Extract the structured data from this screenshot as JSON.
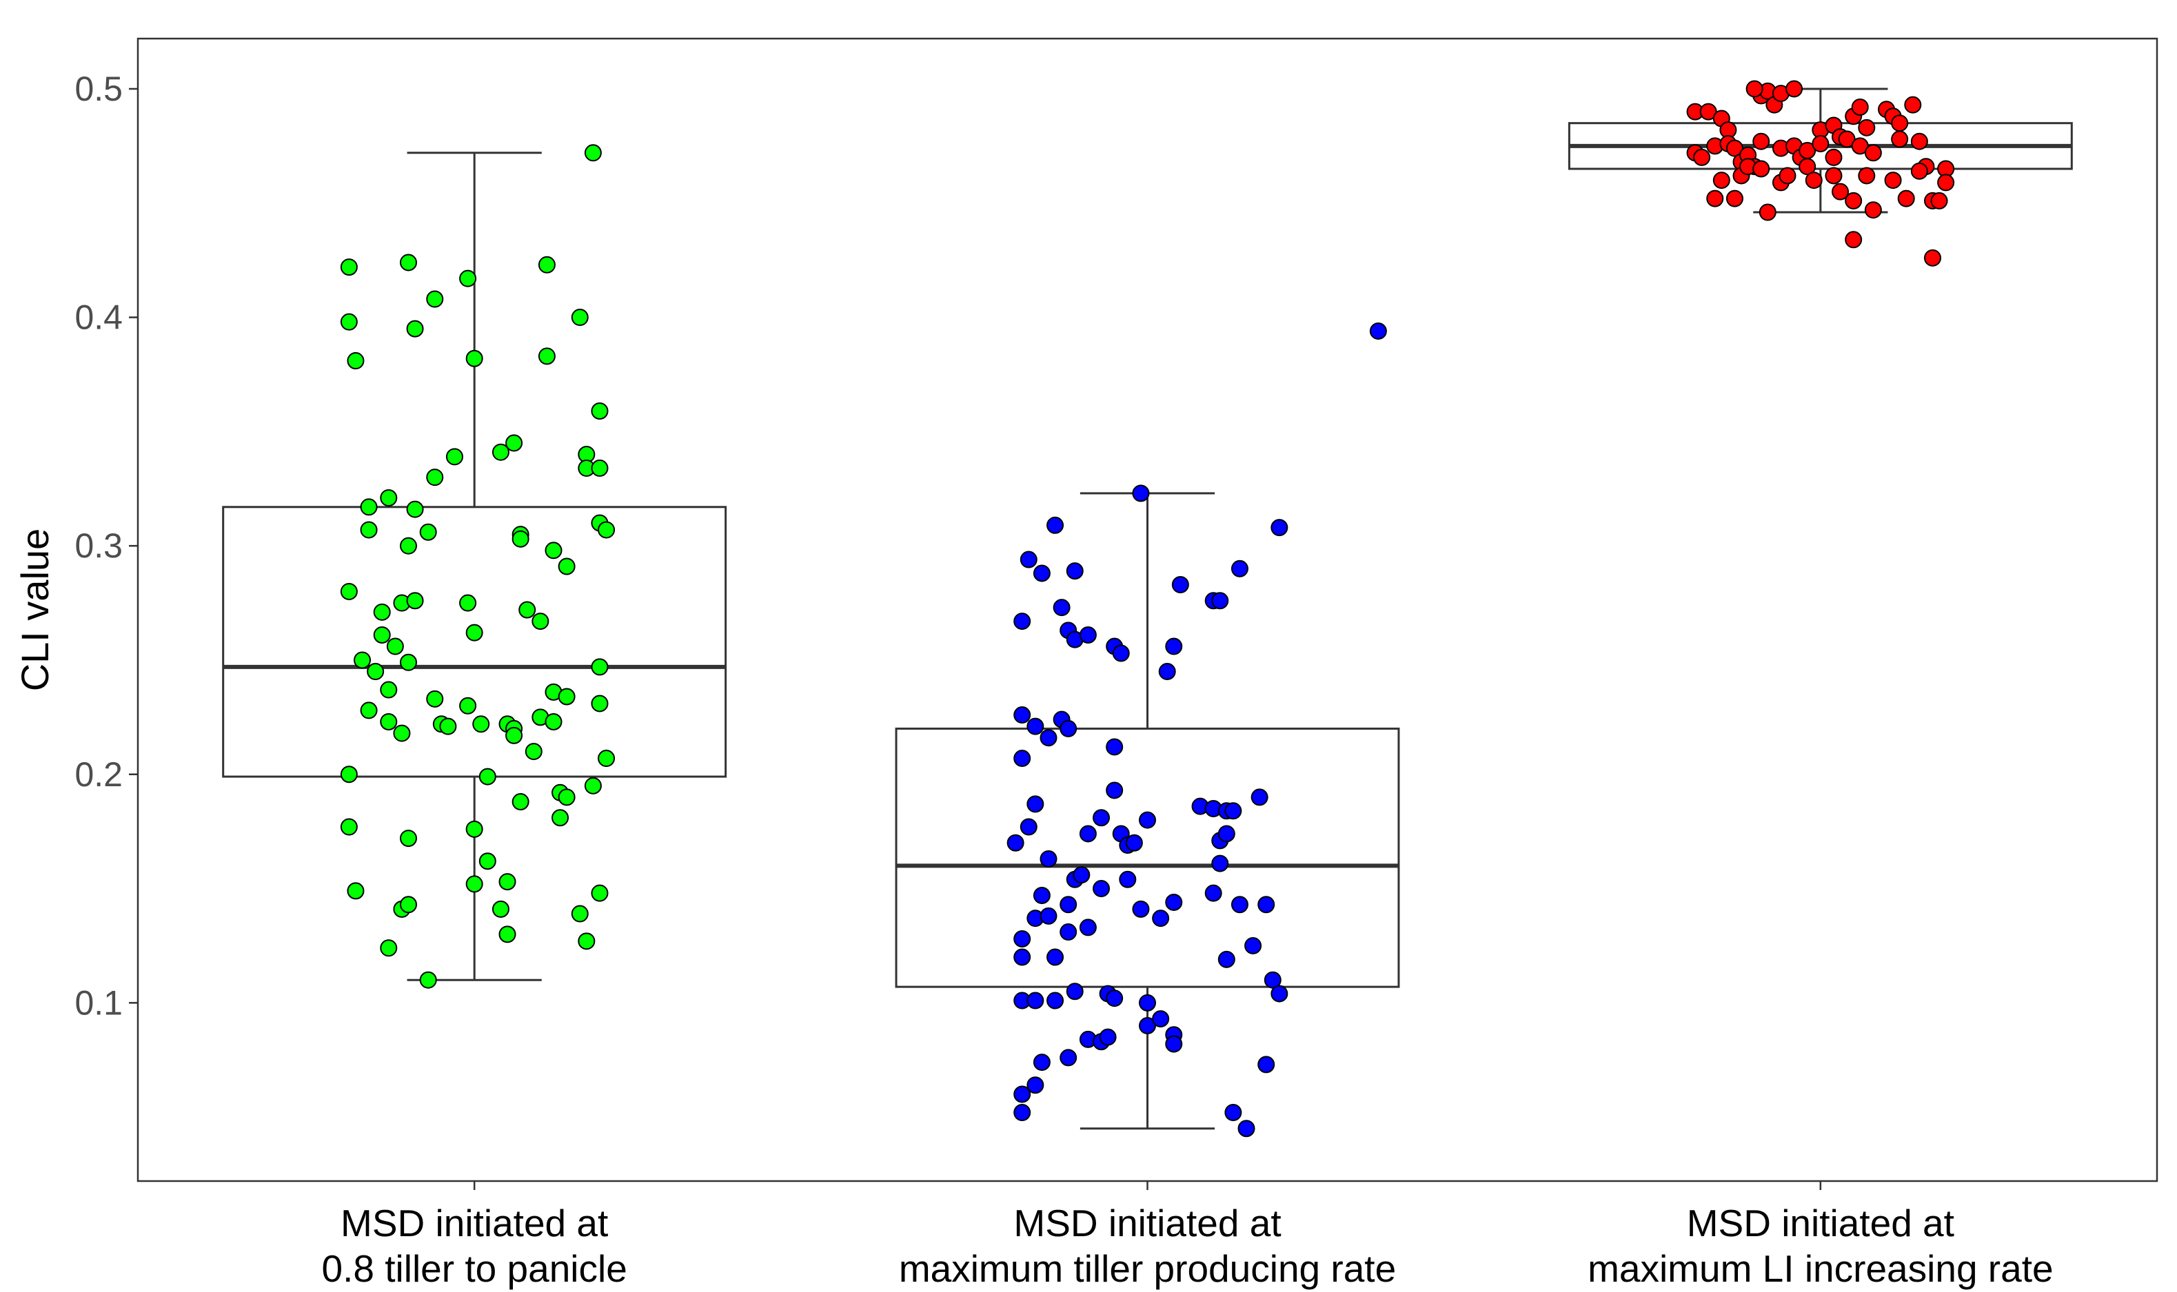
{
  "chart_data": {
    "type": "boxplot",
    "title": "",
    "xlabel": "",
    "ylabel": "CLI value",
    "ylim": [
      0.022,
      0.522
    ],
    "yticks": [
      0.1,
      0.2,
      0.3,
      0.4,
      0.5
    ],
    "ytick_labels": [
      "0.1",
      "0.2",
      "0.3",
      "0.4",
      "0.5"
    ],
    "grid": false,
    "legend": "none",
    "categories": [
      {
        "line1": "MSD initiated at",
        "line2": "0.8 tiller to panicle",
        "color": "#00ff00",
        "box": {
          "whisker_low": 0.11,
          "q1": 0.199,
          "median": 0.247,
          "q3": 0.317,
          "whisker_high": 0.472
        },
        "points": [
          [
            -0.19,
            0.422
          ],
          [
            -0.19,
            0.398
          ],
          [
            -0.18,
            0.381
          ],
          [
            -0.09,
            0.395
          ],
          [
            -0.1,
            0.424
          ],
          [
            -0.06,
            0.408
          ],
          [
            -0.01,
            0.417
          ],
          [
            0.0,
            0.382
          ],
          [
            0.11,
            0.423
          ],
          [
            0.11,
            0.383
          ],
          [
            0.16,
            0.4
          ],
          [
            0.18,
            0.472
          ],
          [
            -0.06,
            0.33
          ],
          [
            -0.03,
            0.339
          ],
          [
            0.04,
            0.341
          ],
          [
            0.06,
            0.345
          ],
          [
            0.17,
            0.34
          ],
          [
            0.17,
            0.334
          ],
          [
            0.19,
            0.334
          ],
          [
            0.19,
            0.359
          ],
          [
            -0.16,
            0.317
          ],
          [
            -0.13,
            0.321
          ],
          [
            -0.09,
            0.316
          ],
          [
            -0.16,
            0.307
          ],
          [
            -0.07,
            0.306
          ],
          [
            -0.1,
            0.3
          ],
          [
            0.07,
            0.305
          ],
          [
            0.07,
            0.303
          ],
          [
            0.12,
            0.298
          ],
          [
            0.14,
            0.291
          ],
          [
            0.19,
            0.31
          ],
          [
            0.2,
            0.307
          ],
          [
            -0.19,
            0.28
          ],
          [
            -0.14,
            0.271
          ],
          [
            -0.11,
            0.275
          ],
          [
            -0.09,
            0.276
          ],
          [
            -0.01,
            0.275
          ],
          [
            0.08,
            0.272
          ],
          [
            0.1,
            0.267
          ],
          [
            -0.17,
            0.25
          ],
          [
            -0.14,
            0.261
          ],
          [
            -0.12,
            0.256
          ],
          [
            -0.1,
            0.249
          ],
          [
            0.0,
            0.262
          ],
          [
            -0.15,
            0.245
          ],
          [
            -0.13,
            0.237
          ],
          [
            -0.16,
            0.228
          ],
          [
            -0.13,
            0.223
          ],
          [
            -0.11,
            0.218
          ],
          [
            -0.06,
            0.233
          ],
          [
            -0.05,
            0.222
          ],
          [
            -0.04,
            0.221
          ],
          [
            -0.01,
            0.23
          ],
          [
            0.01,
            0.222
          ],
          [
            0.05,
            0.222
          ],
          [
            0.06,
            0.22
          ],
          [
            0.06,
            0.217
          ],
          [
            0.09,
            0.21
          ],
          [
            0.1,
            0.225
          ],
          [
            0.12,
            0.236
          ],
          [
            0.12,
            0.223
          ],
          [
            0.14,
            0.234
          ],
          [
            0.19,
            0.247
          ],
          [
            0.19,
            0.231
          ],
          [
            0.2,
            0.207
          ],
          [
            -0.19,
            0.2
          ],
          [
            -0.19,
            0.177
          ],
          [
            -0.18,
            0.149
          ],
          [
            -0.11,
            0.141
          ],
          [
            -0.1,
            0.143
          ],
          [
            -0.1,
            0.172
          ],
          [
            -0.07,
            0.11
          ],
          [
            -0.13,
            0.124
          ],
          [
            0.0,
            0.176
          ],
          [
            0.0,
            0.152
          ],
          [
            0.02,
            0.199
          ],
          [
            0.02,
            0.162
          ],
          [
            0.04,
            0.141
          ],
          [
            0.05,
            0.13
          ],
          [
            0.05,
            0.153
          ],
          [
            0.07,
            0.188
          ],
          [
            0.13,
            0.192
          ],
          [
            0.13,
            0.181
          ],
          [
            0.14,
            0.19
          ],
          [
            0.16,
            0.139
          ],
          [
            0.17,
            0.127
          ],
          [
            0.18,
            0.195
          ],
          [
            0.19,
            0.148
          ]
        ]
      },
      {
        "line1": "MSD initiated at",
        "line2": "maximum tiller producing rate",
        "color": "#0000ff",
        "box": {
          "whisker_low": 0.045,
          "q1": 0.107,
          "median": 0.16,
          "q3": 0.22,
          "whisker_high": 0.323
        },
        "points": [
          [
            0.35,
            0.394
          ],
          [
            -0.01,
            0.323
          ],
          [
            0.2,
            0.308
          ],
          [
            -0.14,
            0.309
          ],
          [
            -0.18,
            0.294
          ],
          [
            -0.16,
            0.288
          ],
          [
            -0.11,
            0.289
          ],
          [
            0.05,
            0.283
          ],
          [
            0.1,
            0.276
          ],
          [
            0.11,
            0.276
          ],
          [
            0.14,
            0.29
          ],
          [
            -0.19,
            0.267
          ],
          [
            -0.13,
            0.273
          ],
          [
            -0.12,
            0.263
          ],
          [
            -0.11,
            0.259
          ],
          [
            -0.09,
            0.261
          ],
          [
            -0.05,
            0.256
          ],
          [
            -0.04,
            0.253
          ],
          [
            0.04,
            0.256
          ],
          [
            0.03,
            0.245
          ],
          [
            -0.19,
            0.226
          ],
          [
            -0.19,
            0.207
          ],
          [
            -0.17,
            0.221
          ],
          [
            -0.15,
            0.216
          ],
          [
            -0.13,
            0.224
          ],
          [
            -0.12,
            0.22
          ],
          [
            -0.05,
            0.212
          ],
          [
            -0.17,
            0.187
          ],
          [
            -0.09,
            0.174
          ],
          [
            -0.07,
            0.181
          ],
          [
            -0.05,
            0.193
          ],
          [
            -0.04,
            0.174
          ],
          [
            -0.03,
            0.169
          ],
          [
            -0.02,
            0.17
          ],
          [
            0.0,
            0.18
          ],
          [
            0.08,
            0.186
          ],
          [
            0.1,
            0.185
          ],
          [
            0.11,
            0.171
          ],
          [
            0.12,
            0.184
          ],
          [
            0.12,
            0.174
          ],
          [
            0.13,
            0.184
          ],
          [
            0.17,
            0.19
          ],
          [
            0.11,
            0.161
          ],
          [
            -0.2,
            0.17
          ],
          [
            -0.18,
            0.177
          ],
          [
            -0.15,
            0.163
          ],
          [
            -0.16,
            0.147
          ],
          [
            -0.12,
            0.143
          ],
          [
            -0.11,
            0.154
          ],
          [
            -0.1,
            0.156
          ],
          [
            -0.07,
            0.15
          ],
          [
            -0.03,
            0.154
          ],
          [
            -0.01,
            0.141
          ],
          [
            0.02,
            0.137
          ],
          [
            0.04,
            0.144
          ],
          [
            0.1,
            0.148
          ],
          [
            0.14,
            0.143
          ],
          [
            0.18,
            0.143
          ],
          [
            -0.19,
            0.128
          ],
          [
            -0.19,
            0.12
          ],
          [
            -0.17,
            0.137
          ],
          [
            -0.15,
            0.138
          ],
          [
            -0.14,
            0.12
          ],
          [
            -0.12,
            0.131
          ],
          [
            -0.09,
            0.133
          ],
          [
            0.12,
            0.119
          ],
          [
            0.16,
            0.125
          ],
          [
            -0.19,
            0.101
          ],
          [
            -0.17,
            0.101
          ],
          [
            -0.14,
            0.101
          ],
          [
            -0.11,
            0.105
          ],
          [
            -0.06,
            0.104
          ],
          [
            -0.05,
            0.102
          ],
          [
            0.0,
            0.1
          ],
          [
            0.0,
            0.09
          ],
          [
            0.02,
            0.093
          ],
          [
            0.04,
            0.086
          ],
          [
            0.04,
            0.082
          ],
          [
            0.19,
            0.11
          ],
          [
            0.2,
            0.104
          ],
          [
            -0.16,
            0.074
          ],
          [
            -0.12,
            0.076
          ],
          [
            -0.09,
            0.084
          ],
          [
            -0.07,
            0.083
          ],
          [
            -0.06,
            0.085
          ],
          [
            -0.19,
            0.06
          ],
          [
            -0.19,
            0.052
          ],
          [
            -0.17,
            0.064
          ],
          [
            0.13,
            0.052
          ],
          [
            0.15,
            0.045
          ],
          [
            0.18,
            0.073
          ]
        ]
      },
      {
        "line1": "MSD initiated at",
        "line2": "maximum LI increasing rate",
        "color": "#ff0000",
        "box": {
          "whisker_low": 0.446,
          "q1": 0.465,
          "median": 0.475,
          "q3": 0.485,
          "whisker_high": 0.5
        },
        "points": [
          [
            -0.19,
            0.49
          ],
          [
            -0.17,
            0.49
          ],
          [
            -0.15,
            0.487
          ],
          [
            -0.14,
            0.482
          ],
          [
            -0.09,
            0.497
          ],
          [
            -0.08,
            0.499
          ],
          [
            -0.07,
            0.493
          ],
          [
            -0.06,
            0.498
          ],
          [
            -0.04,
            0.5
          ],
          [
            -0.1,
            0.5
          ],
          [
            0.0,
            0.482
          ],
          [
            0.02,
            0.484
          ],
          [
            0.03,
            0.479
          ],
          [
            0.05,
            0.488
          ],
          [
            0.06,
            0.492
          ],
          [
            0.07,
            0.483
          ],
          [
            0.1,
            0.491
          ],
          [
            0.11,
            0.488
          ],
          [
            0.12,
            0.485
          ],
          [
            0.14,
            0.493
          ],
          [
            -0.19,
            0.472
          ],
          [
            -0.18,
            0.47
          ],
          [
            -0.16,
            0.475
          ],
          [
            -0.14,
            0.476
          ],
          [
            -0.13,
            0.474
          ],
          [
            -0.12,
            0.468
          ],
          [
            -0.11,
            0.471
          ],
          [
            -0.1,
            0.466
          ],
          [
            -0.09,
            0.477
          ],
          [
            -0.06,
            0.474
          ],
          [
            -0.04,
            0.475
          ],
          [
            -0.03,
            0.47
          ],
          [
            -0.02,
            0.473
          ],
          [
            0.0,
            0.476
          ],
          [
            0.02,
            0.47
          ],
          [
            0.04,
            0.478
          ],
          [
            0.06,
            0.475
          ],
          [
            0.08,
            0.472
          ],
          [
            0.12,
            0.478
          ],
          [
            0.15,
            0.477
          ],
          [
            0.16,
            0.466
          ],
          [
            -0.16,
            0.452
          ],
          [
            -0.15,
            0.46
          ],
          [
            -0.13,
            0.452
          ],
          [
            -0.12,
            0.462
          ],
          [
            -0.11,
            0.466
          ],
          [
            -0.09,
            0.465
          ],
          [
            -0.08,
            0.446
          ],
          [
            -0.06,
            0.459
          ],
          [
            -0.05,
            0.462
          ],
          [
            -0.02,
            0.466
          ],
          [
            -0.01,
            0.46
          ],
          [
            0.02,
            0.462
          ],
          [
            0.03,
            0.455
          ],
          [
            0.05,
            0.451
          ],
          [
            0.07,
            0.462
          ],
          [
            0.08,
            0.447
          ],
          [
            0.11,
            0.46
          ],
          [
            0.13,
            0.452
          ],
          [
            0.15,
            0.464
          ],
          [
            0.17,
            0.451
          ],
          [
            0.19,
            0.465
          ],
          [
            0.19,
            0.459
          ],
          [
            0.18,
            0.451
          ],
          [
            0.05,
            0.434
          ],
          [
            0.17,
            0.426
          ]
        ]
      }
    ]
  }
}
